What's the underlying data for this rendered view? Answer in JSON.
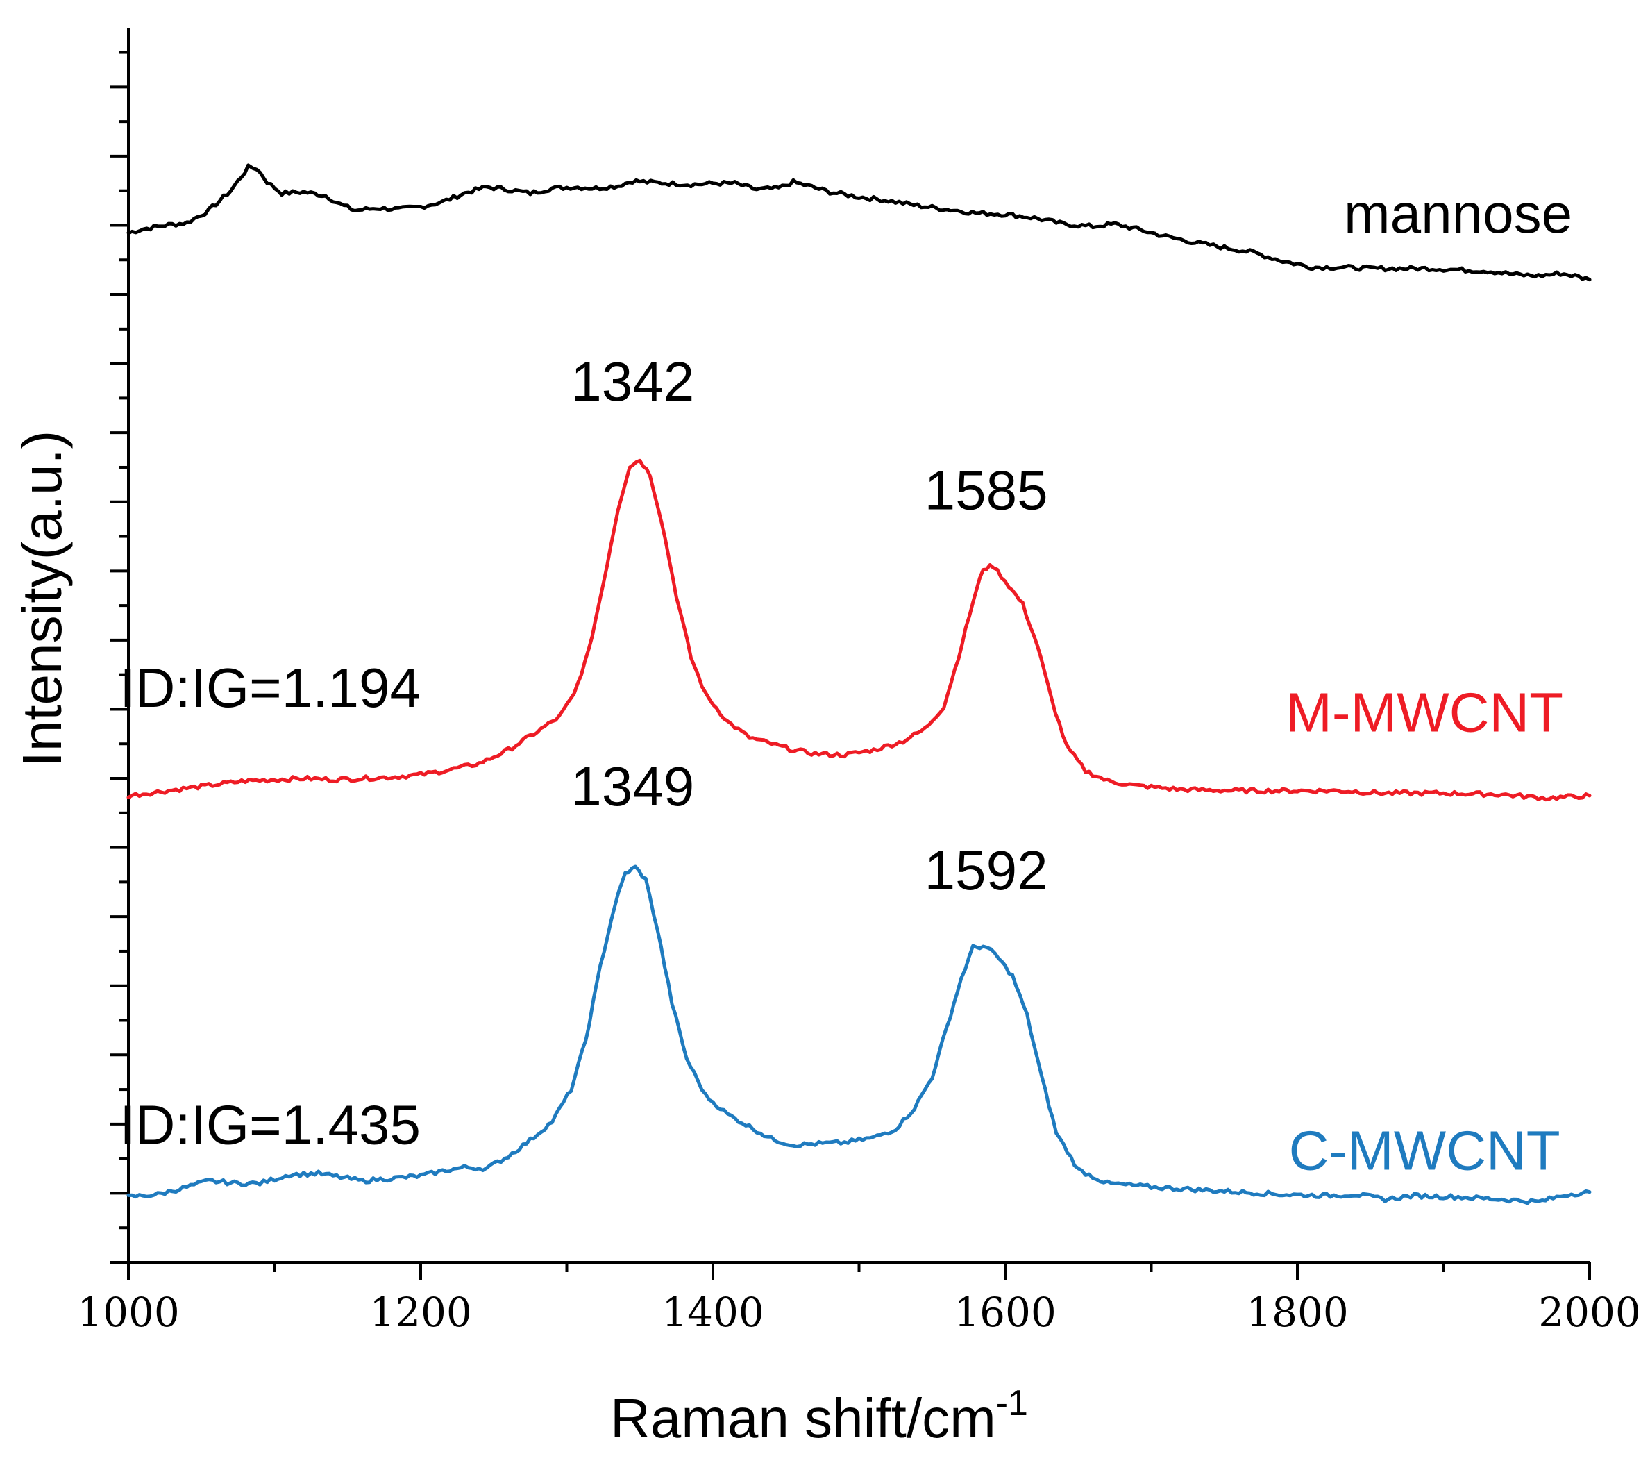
{
  "chart_data": {
    "type": "line",
    "title": "",
    "xlabel": "Raman shift/cm",
    "xlabel_sup": "-1",
    "ylabel": "Intensity(a.u.)",
    "xlim": [
      1000,
      2000
    ],
    "x_ticks": [
      1000,
      1200,
      1400,
      1600,
      1800,
      2000
    ],
    "x_tick_labels": [
      "1000",
      "1200",
      "1400",
      "1600",
      "1800",
      "2000"
    ],
    "y_tick_labels_shown": false,
    "grid": false,
    "legend": "none",
    "series": [
      {
        "name": "mannose",
        "color": "#000000",
        "points": [
          [
            1000,
            0.834
          ],
          [
            1010,
            0.837
          ],
          [
            1025,
            0.84
          ],
          [
            1040,
            0.842
          ],
          [
            1055,
            0.852
          ],
          [
            1070,
            0.868
          ],
          [
            1082,
            0.887
          ],
          [
            1088,
            0.886
          ],
          [
            1095,
            0.875
          ],
          [
            1105,
            0.866
          ],
          [
            1120,
            0.867
          ],
          [
            1135,
            0.864
          ],
          [
            1145,
            0.857
          ],
          [
            1155,
            0.852
          ],
          [
            1170,
            0.854
          ],
          [
            1185,
            0.853
          ],
          [
            1200,
            0.855
          ],
          [
            1215,
            0.859
          ],
          [
            1230,
            0.866
          ],
          [
            1245,
            0.871
          ],
          [
            1260,
            0.869
          ],
          [
            1275,
            0.866
          ],
          [
            1290,
            0.87
          ],
          [
            1305,
            0.871
          ],
          [
            1320,
            0.87
          ],
          [
            1335,
            0.872
          ],
          [
            1345,
            0.876
          ],
          [
            1355,
            0.875
          ],
          [
            1370,
            0.874
          ],
          [
            1385,
            0.873
          ],
          [
            1400,
            0.874
          ],
          [
            1415,
            0.874
          ],
          [
            1430,
            0.869
          ],
          [
            1445,
            0.87
          ],
          [
            1455,
            0.875
          ],
          [
            1465,
            0.872
          ],
          [
            1480,
            0.867
          ],
          [
            1500,
            0.863
          ],
          [
            1520,
            0.86
          ],
          [
            1540,
            0.856
          ],
          [
            1560,
            0.853
          ],
          [
            1580,
            0.85
          ],
          [
            1600,
            0.849
          ],
          [
            1620,
            0.846
          ],
          [
            1640,
            0.841
          ],
          [
            1660,
            0.839
          ],
          [
            1675,
            0.841
          ],
          [
            1690,
            0.837
          ],
          [
            1710,
            0.831
          ],
          [
            1730,
            0.826
          ],
          [
            1750,
            0.822
          ],
          [
            1770,
            0.818
          ],
          [
            1790,
            0.811
          ],
          [
            1810,
            0.806
          ],
          [
            1830,
            0.806
          ],
          [
            1850,
            0.805
          ],
          [
            1870,
            0.805
          ],
          [
            1890,
            0.805
          ],
          [
            1910,
            0.804
          ],
          [
            1930,
            0.803
          ],
          [
            1950,
            0.8
          ],
          [
            1965,
            0.799
          ],
          [
            1980,
            0.801
          ],
          [
            1990,
            0.799
          ],
          [
            2000,
            0.796
          ]
        ]
      },
      {
        "name": "M-MWCNT",
        "color": "#ee1c25",
        "points": [
          [
            1000,
            0.378
          ],
          [
            1020,
            0.381
          ],
          [
            1040,
            0.384
          ],
          [
            1060,
            0.387
          ],
          [
            1080,
            0.39
          ],
          [
            1100,
            0.391
          ],
          [
            1120,
            0.392
          ],
          [
            1140,
            0.391
          ],
          [
            1160,
            0.392
          ],
          [
            1180,
            0.393
          ],
          [
            1200,
            0.395
          ],
          [
            1220,
            0.399
          ],
          [
            1240,
            0.404
          ],
          [
            1260,
            0.415
          ],
          [
            1280,
            0.43
          ],
          [
            1295,
            0.442
          ],
          [
            1305,
            0.46
          ],
          [
            1315,
            0.495
          ],
          [
            1325,
            0.55
          ],
          [
            1335,
            0.61
          ],
          [
            1343,
            0.645
          ],
          [
            1350,
            0.65
          ],
          [
            1357,
            0.638
          ],
          [
            1365,
            0.6
          ],
          [
            1375,
            0.54
          ],
          [
            1385,
            0.49
          ],
          [
            1395,
            0.46
          ],
          [
            1410,
            0.438
          ],
          [
            1425,
            0.425
          ],
          [
            1440,
            0.42
          ],
          [
            1455,
            0.415
          ],
          [
            1470,
            0.412
          ],
          [
            1490,
            0.411
          ],
          [
            1510,
            0.415
          ],
          [
            1530,
            0.422
          ],
          [
            1545,
            0.432
          ],
          [
            1558,
            0.45
          ],
          [
            1568,
            0.49
          ],
          [
            1578,
            0.535
          ],
          [
            1585,
            0.562
          ],
          [
            1592,
            0.564
          ],
          [
            1600,
            0.552
          ],
          [
            1612,
            0.533
          ],
          [
            1622,
            0.5
          ],
          [
            1632,
            0.455
          ],
          [
            1642,
            0.418
          ],
          [
            1655,
            0.398
          ],
          [
            1670,
            0.39
          ],
          [
            1690,
            0.386
          ],
          [
            1720,
            0.383
          ],
          [
            1760,
            0.382
          ],
          [
            1800,
            0.382
          ],
          [
            1830,
            0.382
          ],
          [
            1860,
            0.38
          ],
          [
            1900,
            0.38
          ],
          [
            1940,
            0.379
          ],
          [
            1970,
            0.376
          ],
          [
            2000,
            0.378
          ]
        ]
      },
      {
        "name": "C-MWCNT",
        "color": "#1f7bbf",
        "points": [
          [
            1000,
            0.053
          ],
          [
            1020,
            0.055
          ],
          [
            1040,
            0.061
          ],
          [
            1055,
            0.066
          ],
          [
            1075,
            0.064
          ],
          [
            1090,
            0.064
          ],
          [
            1110,
            0.071
          ],
          [
            1130,
            0.072
          ],
          [
            1145,
            0.069
          ],
          [
            1160,
            0.066
          ],
          [
            1180,
            0.068
          ],
          [
            1200,
            0.07
          ],
          [
            1215,
            0.074
          ],
          [
            1230,
            0.077
          ],
          [
            1245,
            0.076
          ],
          [
            1260,
            0.086
          ],
          [
            1275,
            0.099
          ],
          [
            1290,
            0.114
          ],
          [
            1303,
            0.14
          ],
          [
            1313,
            0.18
          ],
          [
            1323,
            0.24
          ],
          [
            1333,
            0.29
          ],
          [
            1340,
            0.315
          ],
          [
            1347,
            0.32
          ],
          [
            1354,
            0.31
          ],
          [
            1362,
            0.27
          ],
          [
            1372,
            0.21
          ],
          [
            1382,
            0.165
          ],
          [
            1395,
            0.135
          ],
          [
            1410,
            0.12
          ],
          [
            1425,
            0.11
          ],
          [
            1440,
            0.1
          ],
          [
            1455,
            0.095
          ],
          [
            1470,
            0.096
          ],
          [
            1490,
            0.097
          ],
          [
            1510,
            0.101
          ],
          [
            1525,
            0.108
          ],
          [
            1538,
            0.125
          ],
          [
            1550,
            0.15
          ],
          [
            1560,
            0.19
          ],
          [
            1570,
            0.23
          ],
          [
            1578,
            0.255
          ],
          [
            1585,
            0.256
          ],
          [
            1593,
            0.25
          ],
          [
            1605,
            0.232
          ],
          [
            1615,
            0.2
          ],
          [
            1625,
            0.15
          ],
          [
            1635,
            0.105
          ],
          [
            1650,
            0.075
          ],
          [
            1670,
            0.064
          ],
          [
            1700,
            0.061
          ],
          [
            1730,
            0.059
          ],
          [
            1760,
            0.057
          ],
          [
            1790,
            0.055
          ],
          [
            1820,
            0.054
          ],
          [
            1840,
            0.055
          ],
          [
            1860,
            0.051
          ],
          [
            1880,
            0.054
          ],
          [
            1910,
            0.053
          ],
          [
            1940,
            0.051
          ],
          [
            1965,
            0.049
          ],
          [
            1985,
            0.055
          ],
          [
            2000,
            0.057
          ]
        ]
      }
    ],
    "annotations": [
      {
        "text": "mannose",
        "x": 1910,
        "y": 0.834,
        "color": "#000000"
      },
      {
        "text": "1342",
        "x": 1345,
        "y": 0.698,
        "color": "#000000"
      },
      {
        "text": "1585",
        "x": 1587,
        "y": 0.61,
        "color": "#000000"
      },
      {
        "text": "ID:IG=1.194",
        "x": 1097,
        "y": 0.45,
        "color": "#000000"
      },
      {
        "text": "M-MWCNT",
        "x": 1887,
        "y": 0.43,
        "color": "#ee1c25"
      },
      {
        "text": "1349",
        "x": 1345,
        "y": 0.37,
        "color": "#000000"
      },
      {
        "text": "1592",
        "x": 1587,
        "y": 0.302,
        "color": "#000000"
      },
      {
        "text": "ID:IG=1.435",
        "x": 1097,
        "y": 0.096,
        "color": "#000000"
      },
      {
        "text": "C-MWCNT",
        "x": 1887,
        "y": 0.075,
        "color": "#1f7bbf"
      }
    ]
  }
}
